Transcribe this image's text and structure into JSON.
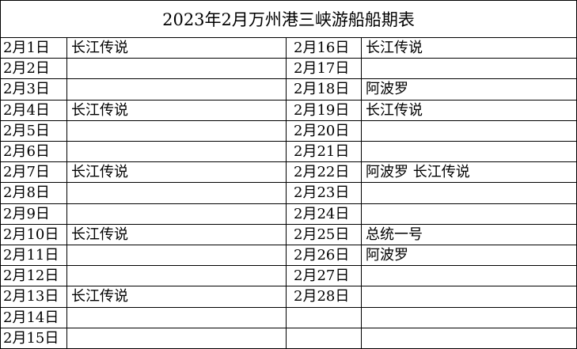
{
  "title": "2023年2月万州港三峡游船船期表",
  "left": [
    {
      "date": "2月1日",
      "ship": "长江传说"
    },
    {
      "date": "2月2日",
      "ship": ""
    },
    {
      "date": "2月3日",
      "ship": ""
    },
    {
      "date": "2月4日",
      "ship": "长江传说"
    },
    {
      "date": "2月5日",
      "ship": ""
    },
    {
      "date": "2月6日",
      "ship": ""
    },
    {
      "date": "2月7日",
      "ship": "长江传说"
    },
    {
      "date": "2月8日",
      "ship": ""
    },
    {
      "date": "2月9日",
      "ship": ""
    },
    {
      "date": "2月10日",
      "ship": "长江传说"
    },
    {
      "date": "2月11日",
      "ship": ""
    },
    {
      "date": "2月12日",
      "ship": ""
    },
    {
      "date": "2月13日",
      "ship": "长江传说"
    },
    {
      "date": "2月14日",
      "ship": ""
    },
    {
      "date": "2月15日",
      "ship": ""
    }
  ],
  "right": [
    {
      "date": "2月16日",
      "ship": "长江传说"
    },
    {
      "date": "2月17日",
      "ship": ""
    },
    {
      "date": "2月18日",
      "ship": "阿波罗"
    },
    {
      "date": "2月19日",
      "ship": "长江传说"
    },
    {
      "date": "2月20日",
      "ship": ""
    },
    {
      "date": "2月21日",
      "ship": ""
    },
    {
      "date": "2月22日",
      "ship": "阿波罗  长江传说"
    },
    {
      "date": "2月23日",
      "ship": ""
    },
    {
      "date": "2月24日",
      "ship": ""
    },
    {
      "date": "2月25日",
      "ship": "总统一号"
    },
    {
      "date": "2月26日",
      "ship": "阿波罗"
    },
    {
      "date": "2月27日",
      "ship": ""
    },
    {
      "date": "2月28日",
      "ship": ""
    },
    {
      "date": "",
      "ship": ""
    },
    {
      "date": "",
      "ship": ""
    }
  ]
}
